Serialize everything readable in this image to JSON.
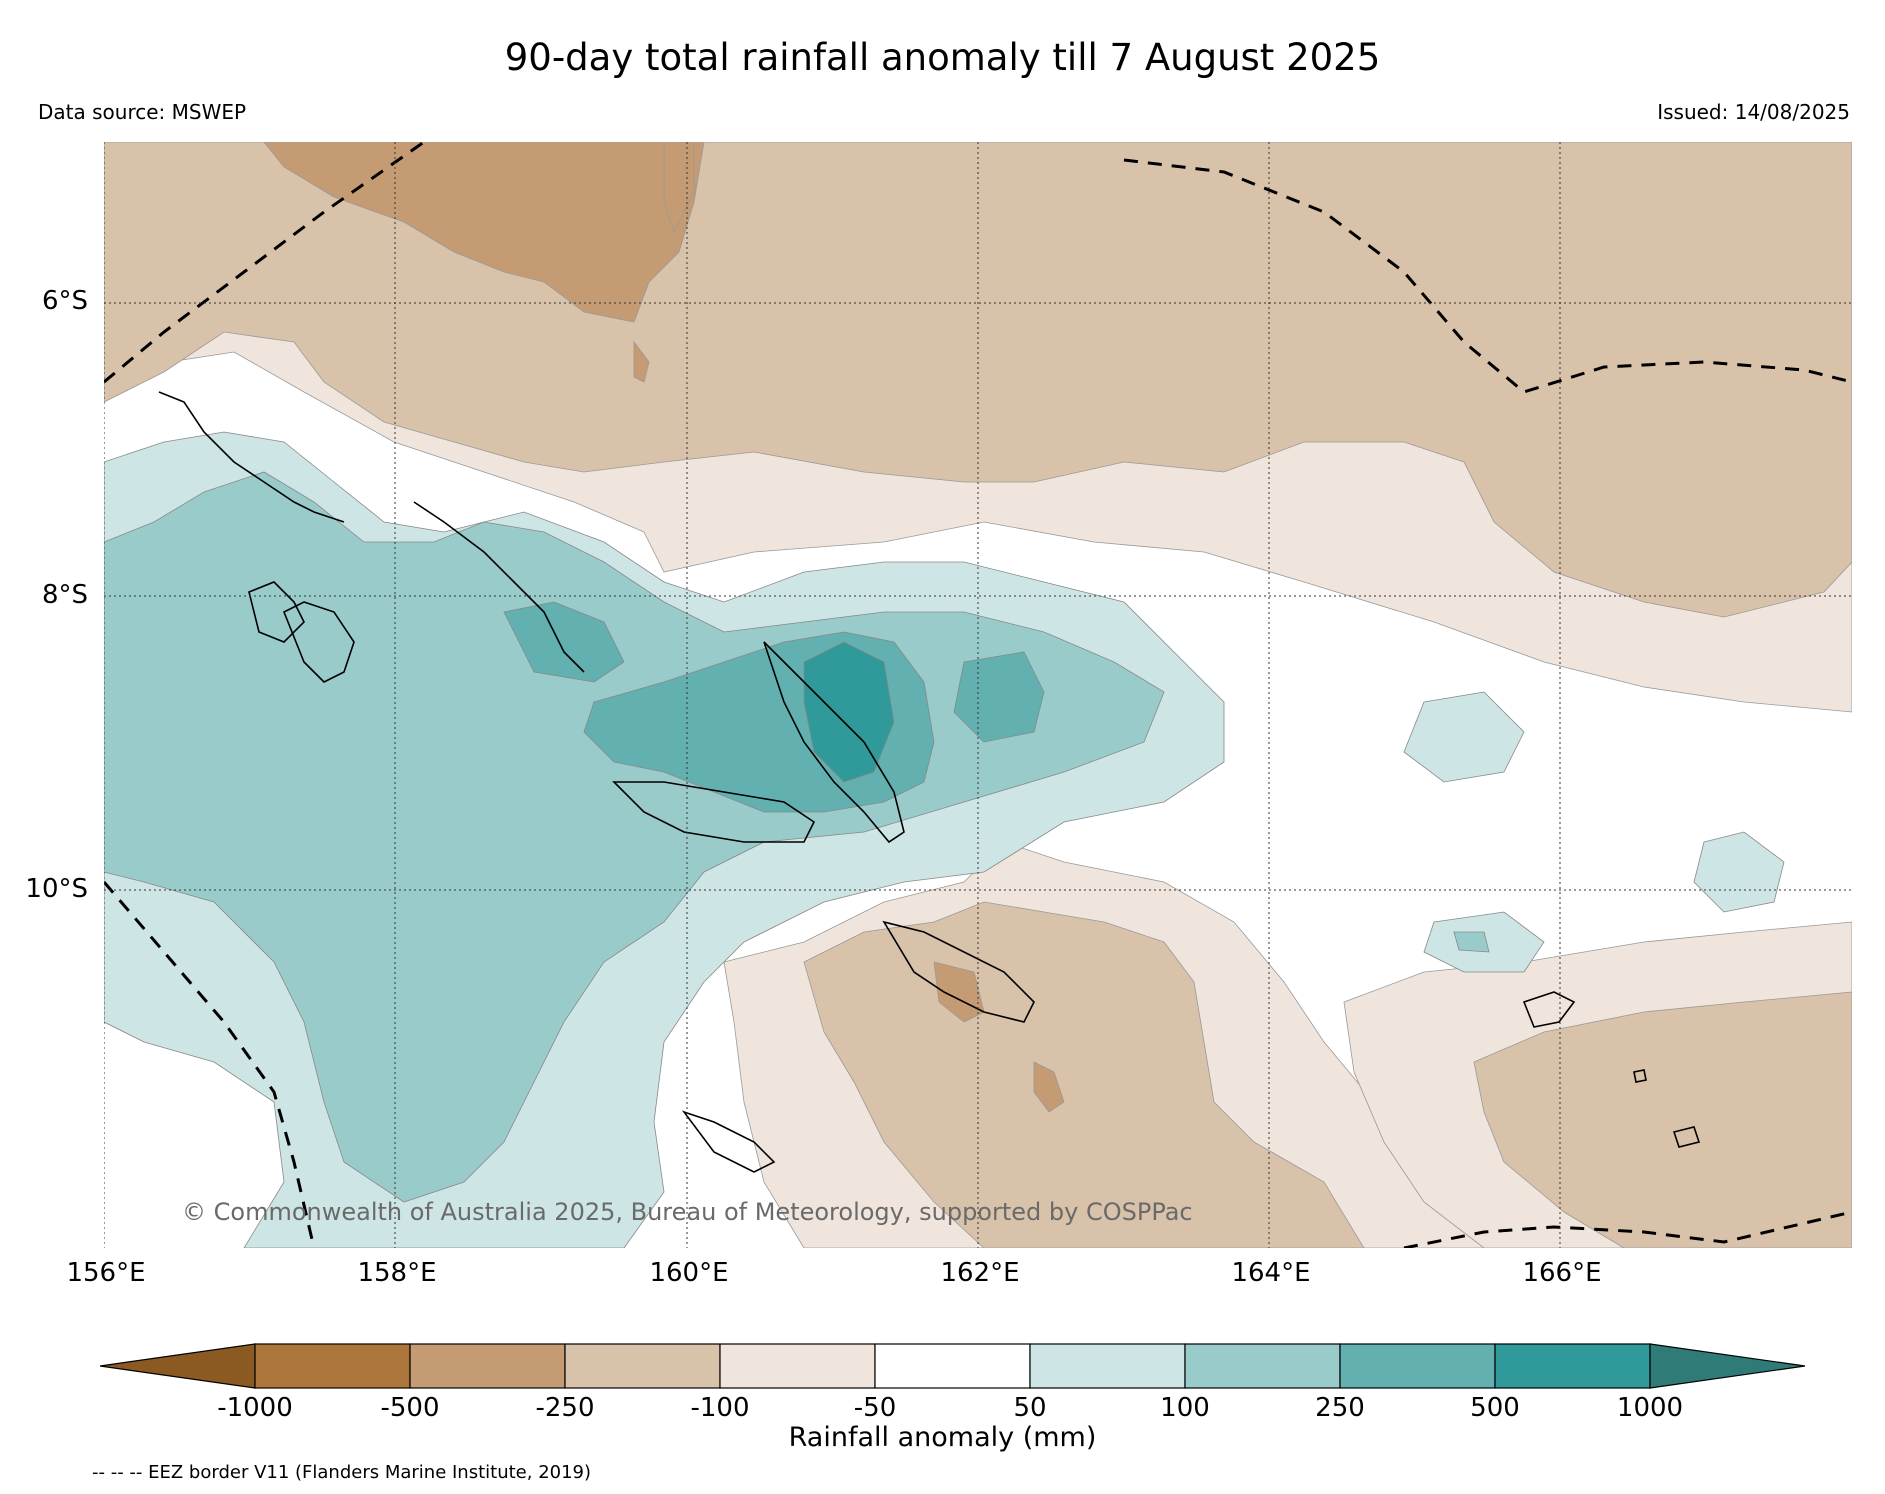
{
  "title": "90-day total rainfall anomaly till 7 August 2025",
  "data_source": "Data source: MSWEP",
  "issued": "Issued: 14/08/2025",
  "copyright": "© Commonwealth of Australia 2025, Bureau of Meteorology, supported by COSPPac",
  "eez_note": "-- -- -- EEZ border V11 (Flanders Marine Institute, 2019)",
  "lat_labels": [
    "6°S",
    "8°S",
    "10°S"
  ],
  "lon_labels": [
    "156°E",
    "158°E",
    "160°E",
    "162°E",
    "164°E",
    "166°E"
  ],
  "colorbar": {
    "title": "Rainfall anomaly (mm)",
    "ticks": [
      "-1000",
      "-500",
      "-250",
      "-100",
      "-50",
      "50",
      "100",
      "250",
      "500",
      "1000"
    ],
    "colors": [
      "#8b5a22",
      "#ad763d",
      "#c49b72",
      "#d9c2aa",
      "#f0e5dc",
      "#ffffff",
      "#cde5e4",
      "#9acbcb",
      "#62b0b0",
      "#30999a",
      "#2e7b78"
    ]
  },
  "chart_data": {
    "type": "heatmap",
    "title": "90-day total rainfall anomaly till 7 August 2025",
    "lon_range": [
      156,
      168
    ],
    "lat_range": [
      -13.2,
      -5.6
    ],
    "units": "mm",
    "legend": "bottom colorbar"
  }
}
